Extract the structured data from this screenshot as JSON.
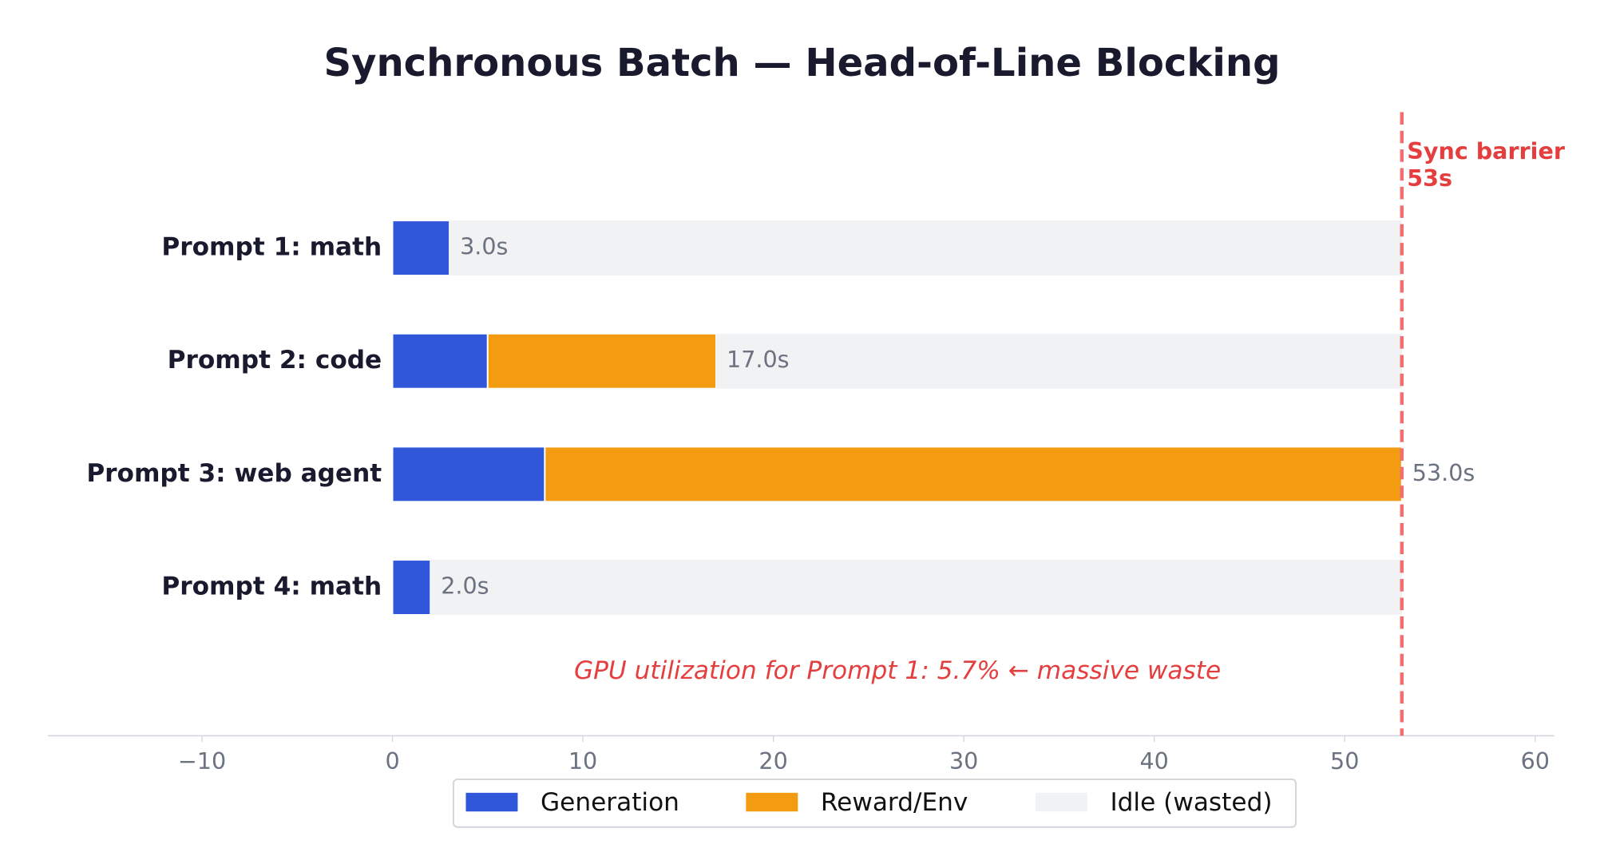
{
  "chart_data": {
    "type": "stacked_barh",
    "title": "Synchronous Batch — Head-of-Line Blocking",
    "categories": [
      "Prompt 1: math",
      "Prompt 2: code",
      "Prompt 3: web agent",
      "Prompt 4: math"
    ],
    "series": [
      {
        "name": "Generation",
        "color": "#3056d9",
        "values": [
          3,
          5,
          8,
          2
        ]
      },
      {
        "name": "Reward/Env",
        "color": "#f39c12",
        "values": [
          0,
          12,
          45,
          0
        ]
      },
      {
        "name": "Idle (wasted)",
        "color": "#f1f2f4",
        "values": [
          50,
          36,
          0,
          51
        ]
      }
    ],
    "totals": {
      "values": [
        3,
        17,
        53,
        2
      ],
      "value_labels": [
        "3.0s",
        "17.0s",
        "53.0s",
        "2.0s"
      ]
    },
    "barrier": {
      "value": 53,
      "label_lines": [
        "Sync barrier",
        "53s"
      ],
      "color": "#f07070"
    },
    "annotation": "GPU utilization for Prompt 1: 5.7%  ← massive waste",
    "xlim": [
      -18.1,
      61
    ],
    "xticks": [
      {
        "value": -10,
        "label": "−10"
      },
      0,
      10,
      20,
      30,
      40,
      50,
      60
    ],
    "legend": "lower center"
  }
}
